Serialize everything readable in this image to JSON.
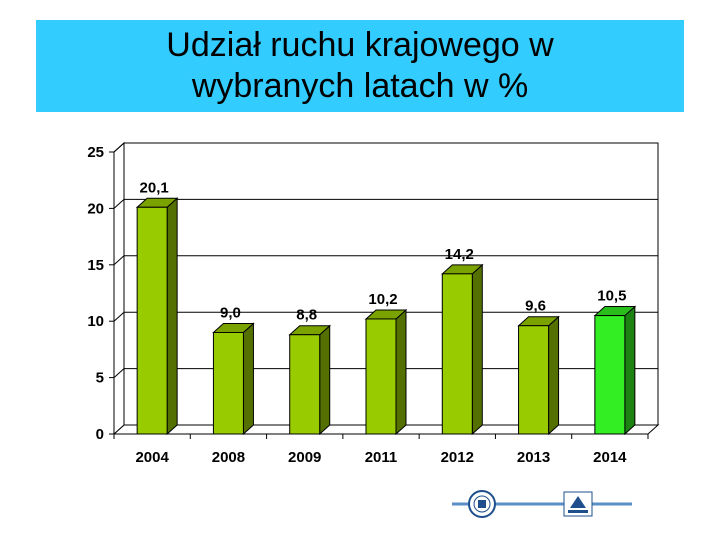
{
  "title_line1": "Udział ruchu krajowego w",
  "title_line2": "wybranych latach w %",
  "colors": {
    "title_background": "#33ccff",
    "bar_default": "#99cc00",
    "bar_highlight": "#33ee22",
    "axis": "#000000"
  },
  "chart_data": {
    "type": "bar",
    "title": "Udział ruchu krajowego w wybranych latach w %",
    "xlabel": "",
    "ylabel": "",
    "categories": [
      "2004",
      "2008",
      "2009",
      "2011",
      "2012",
      "2013",
      "2014"
    ],
    "values": [
      20.1,
      9.0,
      8.8,
      10.2,
      14.2,
      9.6,
      10.5
    ],
    "value_labels": [
      "20,1",
      "9,0",
      "8,8",
      "10,2",
      "14,2",
      "9,6",
      "10,5"
    ],
    "highlight_index": 6,
    "ylim": [
      0,
      25
    ],
    "yticks": [
      0,
      5,
      10,
      15,
      20,
      25
    ],
    "grid": true,
    "style": "3d-bars"
  },
  "logos": [
    {
      "icon": "university-seal-icon"
    },
    {
      "icon": "institute-logo-icon"
    }
  ]
}
